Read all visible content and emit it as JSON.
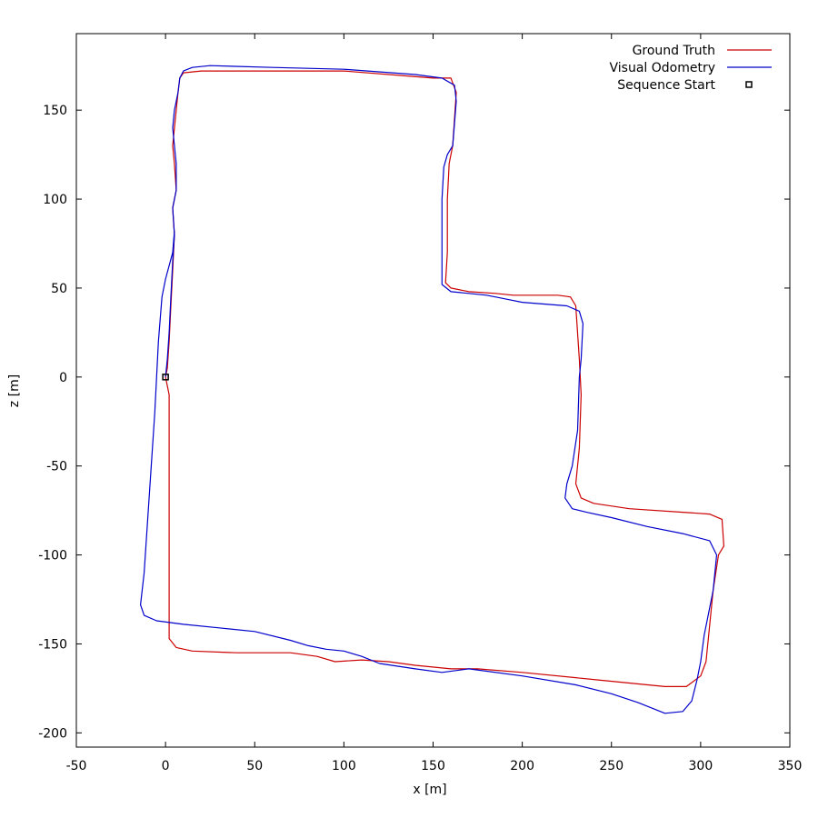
{
  "chart_data": {
    "type": "line",
    "xlabel": "x [m]",
    "ylabel": "z [m]",
    "xlim": [
      -50,
      350
    ],
    "ylim": [
      -208,
      193
    ],
    "x_ticks": [
      -50,
      0,
      50,
      100,
      150,
      200,
      250,
      300,
      350
    ],
    "y_ticks": [
      -200,
      -150,
      -100,
      -50,
      0,
      50,
      100,
      150
    ],
    "grid": false,
    "legend_position": "top-right",
    "series": [
      {
        "name": "Ground Truth",
        "color": "#cc0000",
        "points": [
          [
            0,
            0
          ],
          [
            2,
            -10
          ],
          [
            2,
            -40
          ],
          [
            2,
            -80
          ],
          [
            2,
            -120
          ],
          [
            2,
            -147
          ],
          [
            6,
            -152
          ],
          [
            15,
            -154
          ],
          [
            40,
            -155
          ],
          [
            70,
            -155
          ],
          [
            85,
            -157
          ],
          [
            95,
            -160
          ],
          [
            110,
            -159
          ],
          [
            125,
            -160
          ],
          [
            140,
            -162
          ],
          [
            160,
            -164
          ],
          [
            175,
            -164
          ],
          [
            200,
            -166
          ],
          [
            240,
            -170
          ],
          [
            280,
            -174
          ],
          [
            292,
            -174
          ],
          [
            300,
            -168
          ],
          [
            303,
            -160
          ],
          [
            305,
            -140
          ],
          [
            307,
            -120
          ],
          [
            310,
            -100
          ],
          [
            313,
            -95
          ],
          [
            312,
            -80
          ],
          [
            305,
            -77
          ],
          [
            290,
            -76
          ],
          [
            260,
            -74
          ],
          [
            240,
            -71
          ],
          [
            233,
            -68
          ],
          [
            230,
            -60
          ],
          [
            232,
            -40
          ],
          [
            233,
            -10
          ],
          [
            232,
            10
          ],
          [
            230,
            40
          ],
          [
            227,
            45
          ],
          [
            220,
            46
          ],
          [
            195,
            46
          ],
          [
            185,
            47
          ],
          [
            170,
            48
          ],
          [
            160,
            50
          ],
          [
            157,
            53
          ],
          [
            158,
            70
          ],
          [
            158,
            100
          ],
          [
            159,
            120
          ],
          [
            161,
            130
          ],
          [
            163,
            160
          ],
          [
            160,
            168
          ],
          [
            150,
            168
          ],
          [
            100,
            172
          ],
          [
            60,
            172
          ],
          [
            20,
            172
          ],
          [
            10,
            171
          ],
          [
            8,
            168
          ],
          [
            7,
            160
          ],
          [
            6,
            150
          ],
          [
            5,
            140
          ],
          [
            4,
            130
          ],
          [
            5,
            120
          ],
          [
            6,
            105
          ],
          [
            4,
            95
          ],
          [
            5,
            80
          ],
          [
            4,
            60
          ],
          [
            3,
            40
          ],
          [
            2,
            20
          ],
          [
            1,
            5
          ],
          [
            0,
            0
          ]
        ]
      },
      {
        "name": "Visual Odometry",
        "color": "#0000cc",
        "points": [
          [
            5,
            82
          ],
          [
            4,
            70
          ],
          [
            0,
            55
          ],
          [
            -2,
            45
          ],
          [
            -4,
            20
          ],
          [
            -5,
            0
          ],
          [
            -6,
            -20
          ],
          [
            -8,
            -50
          ],
          [
            -10,
            -80
          ],
          [
            -12,
            -110
          ],
          [
            -14,
            -128
          ],
          [
            -12,
            -134
          ],
          [
            -5,
            -137
          ],
          [
            10,
            -139
          ],
          [
            30,
            -141
          ],
          [
            50,
            -143
          ],
          [
            70,
            -148
          ],
          [
            80,
            -151
          ],
          [
            90,
            -153
          ],
          [
            100,
            -154
          ],
          [
            110,
            -157
          ],
          [
            120,
            -161
          ],
          [
            140,
            -164
          ],
          [
            155,
            -166
          ],
          [
            170,
            -164
          ],
          [
            200,
            -168
          ],
          [
            230,
            -173
          ],
          [
            250,
            -178
          ],
          [
            265,
            -183
          ],
          [
            280,
            -189
          ],
          [
            290,
            -188
          ],
          [
            295,
            -182
          ],
          [
            298,
            -170
          ],
          [
            300,
            -160
          ],
          [
            302,
            -145
          ],
          [
            305,
            -130
          ],
          [
            307,
            -120
          ],
          [
            309,
            -100
          ],
          [
            305,
            -92
          ],
          [
            290,
            -88
          ],
          [
            270,
            -84
          ],
          [
            250,
            -79
          ],
          [
            236,
            -76
          ],
          [
            228,
            -74
          ],
          [
            224,
            -68
          ],
          [
            225,
            -60
          ],
          [
            228,
            -50
          ],
          [
            231,
            -30
          ],
          [
            232,
            0
          ],
          [
            233,
            10
          ],
          [
            234,
            30
          ],
          [
            232,
            37
          ],
          [
            225,
            40
          ],
          [
            200,
            42
          ],
          [
            190,
            44
          ],
          [
            180,
            46
          ],
          [
            170,
            47
          ],
          [
            160,
            48
          ],
          [
            155,
            52
          ],
          [
            155,
            70
          ],
          [
            155,
            100
          ],
          [
            156,
            118
          ],
          [
            158,
            125
          ],
          [
            161,
            130
          ],
          [
            163,
            155
          ],
          [
            162,
            164
          ],
          [
            155,
            168
          ],
          [
            140,
            170
          ],
          [
            100,
            173
          ],
          [
            60,
            174
          ],
          [
            25,
            175
          ],
          [
            15,
            174
          ],
          [
            10,
            172
          ],
          [
            8,
            168
          ],
          [
            7,
            160
          ],
          [
            5,
            150
          ],
          [
            4,
            140
          ],
          [
            5,
            130
          ],
          [
            6,
            120
          ],
          [
            6,
            105
          ],
          [
            4,
            95
          ],
          [
            5,
            80
          ],
          [
            4,
            65
          ],
          [
            3,
            45
          ],
          [
            2,
            25
          ],
          [
            1,
            10
          ],
          [
            0,
            0
          ]
        ]
      }
    ],
    "markers": [
      {
        "name": "Sequence Start",
        "x": 0,
        "y": 0,
        "shape": "square",
        "color": "#000000"
      }
    ]
  }
}
